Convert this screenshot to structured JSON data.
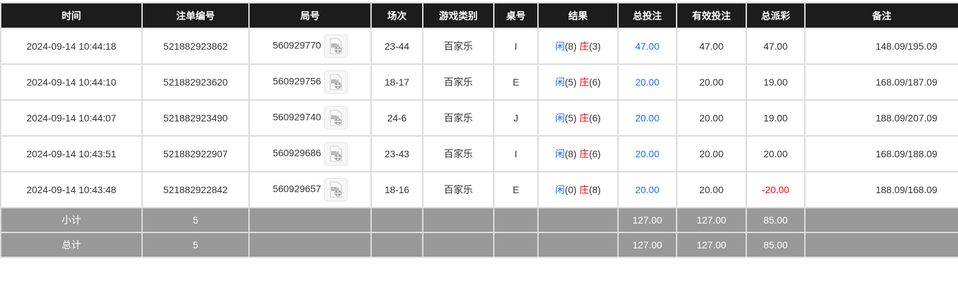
{
  "columns": [
    "时间",
    "注单编号",
    "局号",
    "场次",
    "游戏类别",
    "桌号",
    "结果",
    "总投注",
    "有效投注",
    "总派彩",
    "备注"
  ],
  "rows": [
    {
      "time": "2024-09-14 10:44:18",
      "bet_id": "521882923862",
      "round": "560929770",
      "shoe": "23-44",
      "game": "百家乐",
      "table": "I",
      "player_label": "闲",
      "player": "(8)",
      "banker_label": "庄",
      "banker": "(3)",
      "total": "47.00",
      "valid": "47.00",
      "payout": "47.00",
      "note": "148.09/195.09"
    },
    {
      "time": "2024-09-14 10:44:10",
      "bet_id": "521882923620",
      "round": "560929756",
      "shoe": "18-17",
      "game": "百家乐",
      "table": "E",
      "player_label": "闲",
      "player": "(5)",
      "banker_label": "庄",
      "banker": "(6)",
      "total": "20.00",
      "valid": "20.00",
      "payout": "19.00",
      "note": "168.09/187.09"
    },
    {
      "time": "2024-09-14 10:44:07",
      "bet_id": "521882923490",
      "round": "560929740",
      "shoe": "24-6",
      "game": "百家乐",
      "table": "J",
      "player_label": "闲",
      "player": "(5)",
      "banker_label": "庄",
      "banker": "(6)",
      "total": "20.00",
      "valid": "20.00",
      "payout": "19.00",
      "note": "188.09/207.09"
    },
    {
      "time": "2024-09-14 10:43:51",
      "bet_id": "521882922907",
      "round": "560929686",
      "shoe": "23-43",
      "game": "百家乐",
      "table": "I",
      "player_label": "闲",
      "player": "(8)",
      "banker_label": "庄",
      "banker": "(6)",
      "total": "20.00",
      "valid": "20.00",
      "payout": "20.00",
      "note": "168.09/188.09"
    },
    {
      "time": "2024-09-14 10:43:48",
      "bet_id": "521882922842",
      "round": "560929657",
      "shoe": "18-16",
      "game": "百家乐",
      "table": "E",
      "player_label": "闲",
      "player": "(0)",
      "banker_label": "庄",
      "banker": "(8)",
      "total": "20.00",
      "valid": "20.00",
      "payout": "-20.00",
      "note": "188.09/168.09"
    }
  ],
  "subtotal": {
    "label": "小计",
    "count": "5",
    "total": "127.00",
    "valid": "127.00",
    "payout": "85.00"
  },
  "grandtotal": {
    "label": "总计",
    "count": "5",
    "total": "127.00",
    "valid": "127.00",
    "payout": "85.00"
  },
  "colors": {
    "header": "#1c1c1c",
    "player": "#1a6cff",
    "banker": "#ff0000",
    "negative": "#ff0000",
    "summary": "#999999"
  }
}
